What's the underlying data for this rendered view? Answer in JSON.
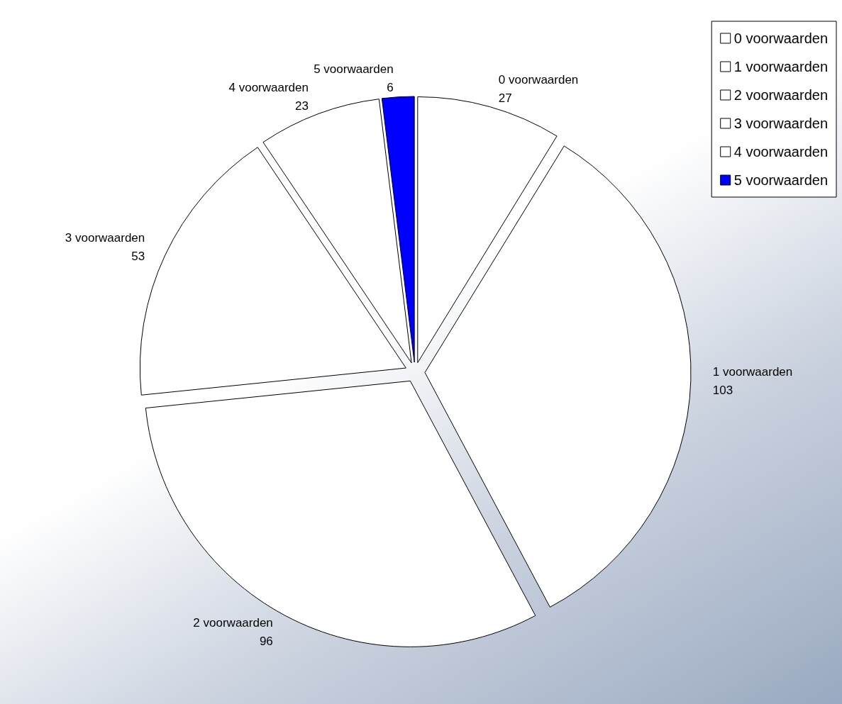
{
  "chart_data": {
    "type": "pie",
    "categories": [
      "0 voorwaarden",
      "1 voorwaarden",
      "2 voorwaarden",
      "3 voorwaarden",
      "4 voorwaarden",
      "5 voorwaarden"
    ],
    "values": [
      27,
      103,
      96,
      53,
      23,
      6
    ],
    "colors": [
      "#ffffff",
      "#ffffff",
      "#ffffff",
      "#ffffff",
      "#ffffff",
      "#0000ff"
    ],
    "data_labels": true,
    "legend": "top right"
  }
}
